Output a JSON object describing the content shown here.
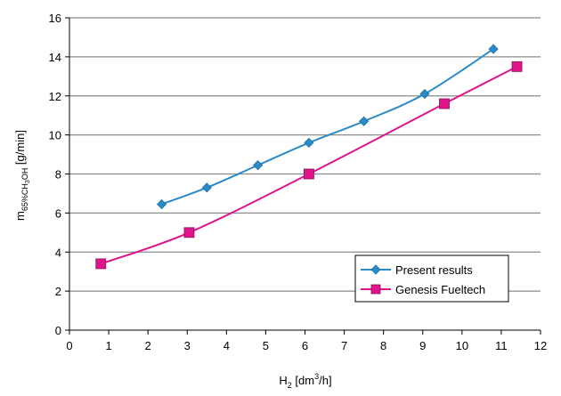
{
  "chart_data": {
    "type": "line",
    "xlabel": {
      "main": "H",
      "sub": "2",
      "unit_pre": " [dm",
      "sup": "3",
      "unit_post": "/h]"
    },
    "ylabel": {
      "main": "m",
      "sub": "65%CH",
      "sub2": "3",
      "sub3": "OH",
      "unit": " [g/min]"
    },
    "xlim": [
      0,
      12
    ],
    "ylim": [
      0,
      16
    ],
    "x_ticks": [
      "0",
      "1",
      "2",
      "3",
      "4",
      "5",
      "6",
      "7",
      "8",
      "9",
      "10",
      "11",
      "12"
    ],
    "y_ticks": [
      "0",
      "2",
      "4",
      "6",
      "8",
      "10",
      "12",
      "14",
      "16"
    ],
    "grid": "horizontal",
    "legend_position": "bottom-right",
    "series": [
      {
        "name": "Present results",
        "color": "#2a8bc8",
        "marker": "diamond",
        "x": [
          2.35,
          3.5,
          4.8,
          6.1,
          7.5,
          9.05,
          10.8
        ],
        "y": [
          6.45,
          7.3,
          8.45,
          9.6,
          10.7,
          12.1,
          14.4
        ]
      },
      {
        "name": "Genesis Fueltech",
        "color": "#e0148a",
        "marker": "square",
        "x": [
          0.8,
          3.05,
          6.1,
          9.55,
          11.4
        ],
        "y": [
          3.4,
          5.0,
          8.0,
          11.6,
          13.5
        ]
      }
    ]
  }
}
